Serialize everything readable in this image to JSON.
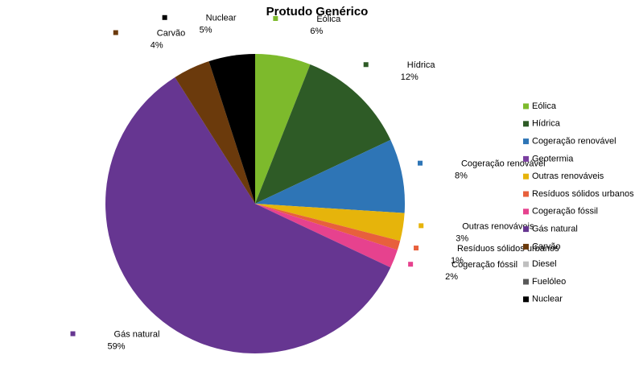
{
  "chart_data": {
    "type": "pie",
    "title": "Protudo Genérico",
    "categories": [
      "Eólica",
      "Hídrica",
      "Cogeração renovável",
      "Geotermia",
      "Outras renováveis",
      "Resíduos sólidos urbanos",
      "Cogeração fóssil",
      "Gás natural",
      "Carvão",
      "Diesel",
      "Fuelóleo",
      "Nuclear"
    ],
    "values": [
      6,
      12,
      8,
      0,
      3,
      1,
      2,
      59,
      4,
      0,
      0,
      5
    ],
    "value_labels": [
      "6%",
      "12%",
      "8%",
      null,
      "3%",
      "1%",
      "2%",
      "59%",
      "4%",
      null,
      null,
      "5%"
    ],
    "colors": [
      "#7dba2c",
      "#2e5b26",
      "#2e75b6",
      "#7a3fa0",
      "#e6b40b",
      "#e8603c",
      "#e6428e",
      "#663691",
      "#6b3a0c",
      "#bfbfbf",
      "#595959",
      "#000000"
    ],
    "legend": "right"
  }
}
